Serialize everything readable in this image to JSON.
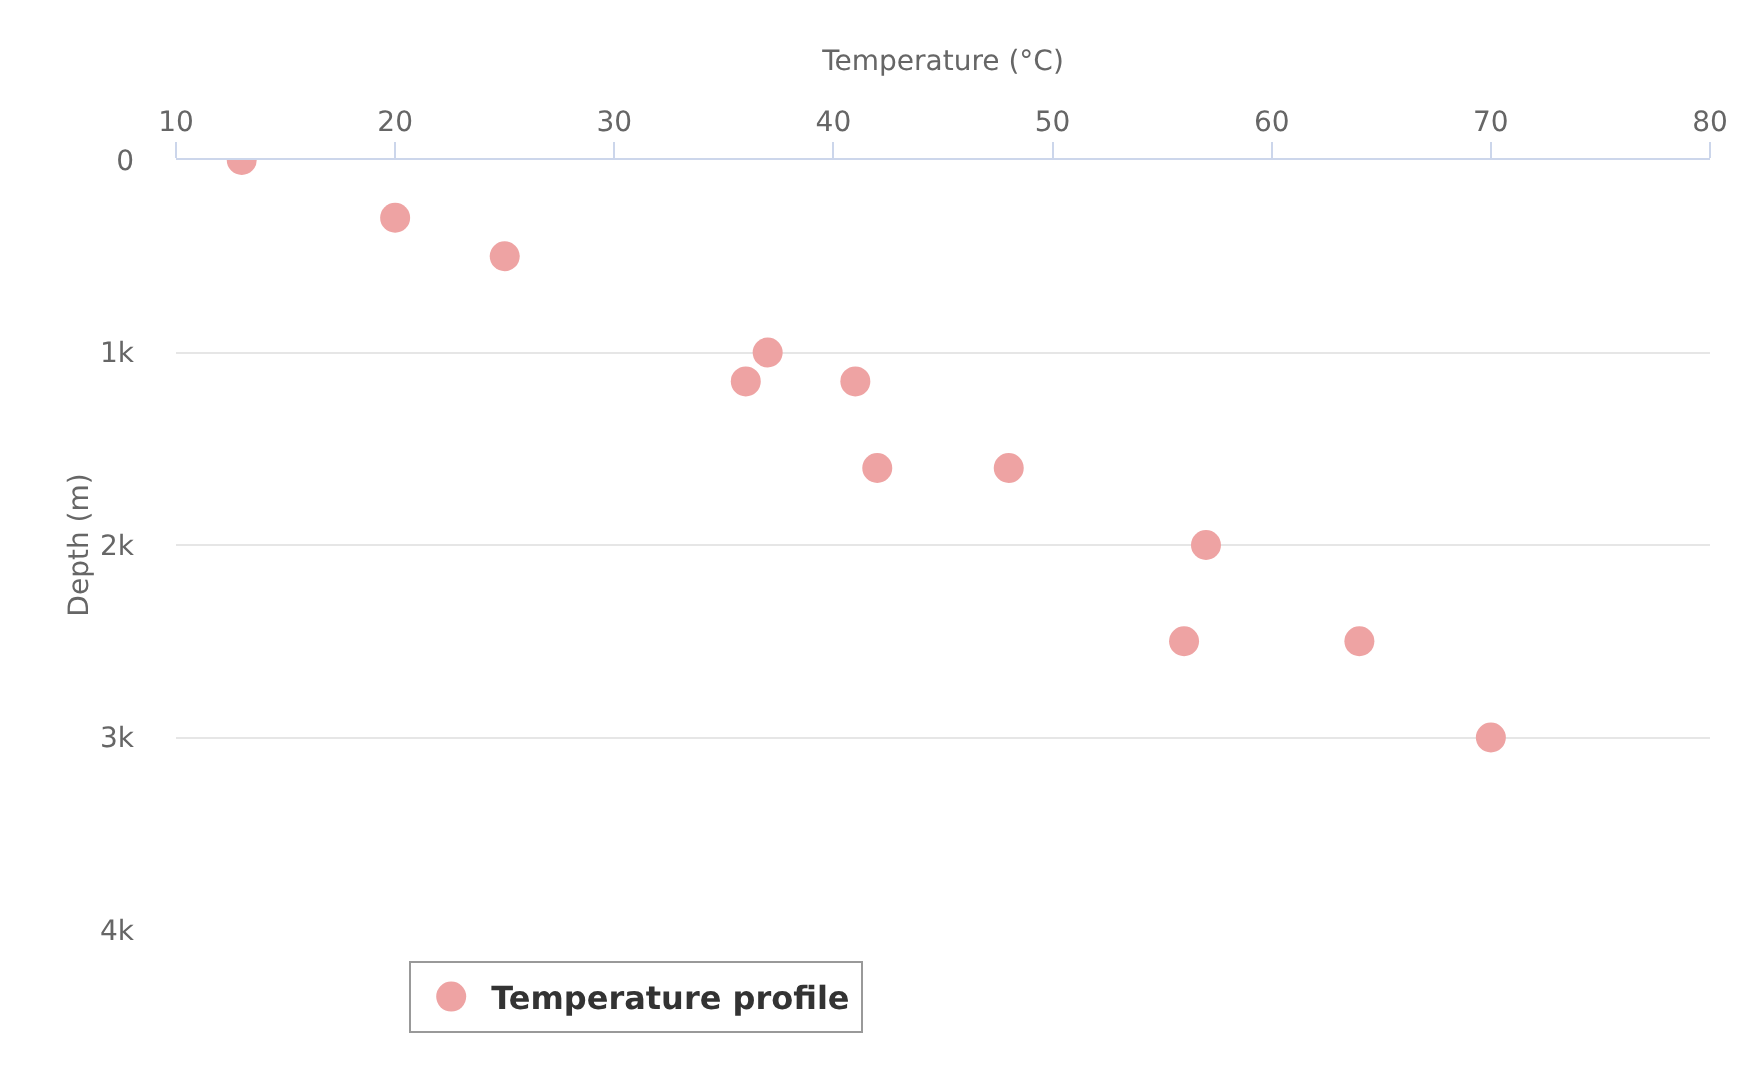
{
  "chart_data": {
    "type": "scatter",
    "xlabel": "Temperature (°C)",
    "ylabel": "Depth (m)",
    "x": [
      13,
      20,
      25,
      37,
      36,
      41,
      42,
      48,
      57,
      56,
      64,
      70
    ],
    "series": [
      {
        "name": "Temperature profile",
        "color": "#eea3a3",
        "values": [
          0,
          300,
          500,
          1000,
          1150,
          1150,
          1600,
          1600,
          2000,
          2500,
          2500,
          3000
        ]
      }
    ],
    "xlim": [
      10,
      80
    ],
    "xticks": [
      10,
      20,
      30,
      40,
      50,
      60,
      70,
      80
    ],
    "ylim": [
      4000,
      0
    ],
    "yticks": [
      {
        "value": 0,
        "label": "0"
      },
      {
        "value": 1000,
        "label": "1k"
      },
      {
        "value": 2000,
        "label": "2k"
      },
      {
        "value": 3000,
        "label": "3k"
      },
      {
        "value": 4000,
        "label": "4k"
      }
    ],
    "grid": "y",
    "legend": "bottom",
    "marker": "circle"
  }
}
